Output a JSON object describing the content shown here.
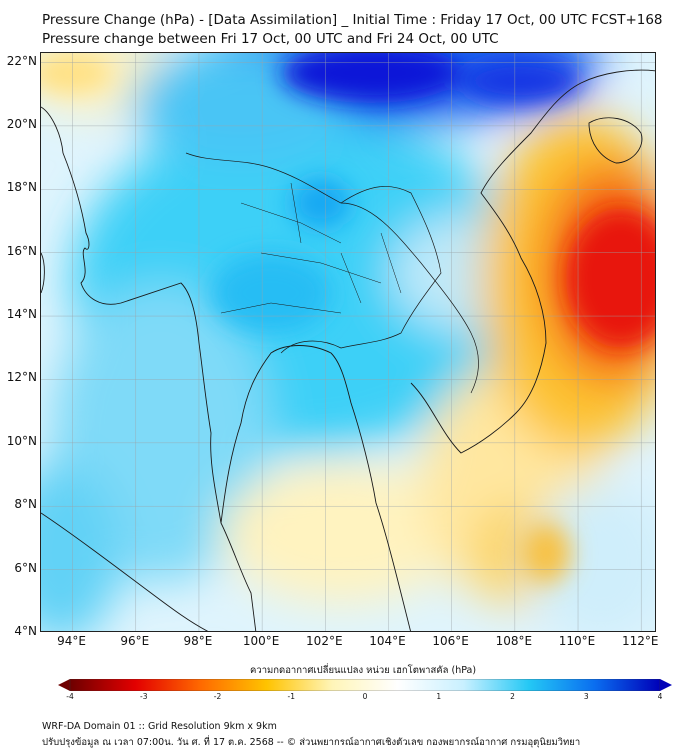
{
  "header": {
    "title_line1": "Pressure Change (hPa) - [Data Assimilation] _ Initial Time : Friday 17 Oct, 00 UTC FCST+168",
    "title_line2": "Pressure change between Fri 17 Oct, 00 UTC and Fri 24 Oct, 00 UTC"
  },
  "map": {
    "lat_labels": [
      "22°N",
      "20°N",
      "18°N",
      "16°N",
      "14°N",
      "12°N",
      "10°N",
      "8°N",
      "6°N",
      "4°N"
    ],
    "lon_labels": [
      "94°E",
      "96°E",
      "98°E",
      "100°E",
      "102°E",
      "104°E",
      "106°E",
      "108°E",
      "110°E",
      "112°E"
    ],
    "lat_range": [
      4,
      22.3
    ],
    "lon_range": [
      93.0,
      112.5
    ],
    "grid": true,
    "field_colors": {
      "background": "#e8f8ff",
      "strong_rise": "#1010e0",
      "rise": "#1ec8f5",
      "weak_rise": "#a8e4fb",
      "weak_fall": "#fff2b3",
      "fall": "#fbc72e",
      "strong_fall": "#e81a0a"
    }
  },
  "colorbar": {
    "caption": "ความกดอากาศเปลี่ยนแปลง หน่วย เฮกโตพาสคัล (hPa)",
    "ticks": [
      "-4",
      "-3",
      "-2",
      "-1",
      "0",
      "1",
      "2",
      "3",
      "4"
    ],
    "range": [
      -4,
      4
    ],
    "colors": [
      "#6e0000",
      "#e30000",
      "#ff6a00",
      "#ffc300",
      "#fff5b8",
      "#ffffff",
      "#c9f0ff",
      "#24c8f5",
      "#0a6ef0",
      "#0000b8"
    ]
  },
  "footer": {
    "line1": "WRF-DA Domain 01 :: Grid Resolution 9km x 9km",
    "line2": "ปรับปรุงข้อมูล ณ เวลา 07:00น. วัน ศ. ที่ 17 ต.ค. 2568 -- © ส่วนพยากรณ์อากาศเชิงตัวเลข กองพยากรณ์อากาศ กรมอุตุนิยมวิทยา"
  }
}
